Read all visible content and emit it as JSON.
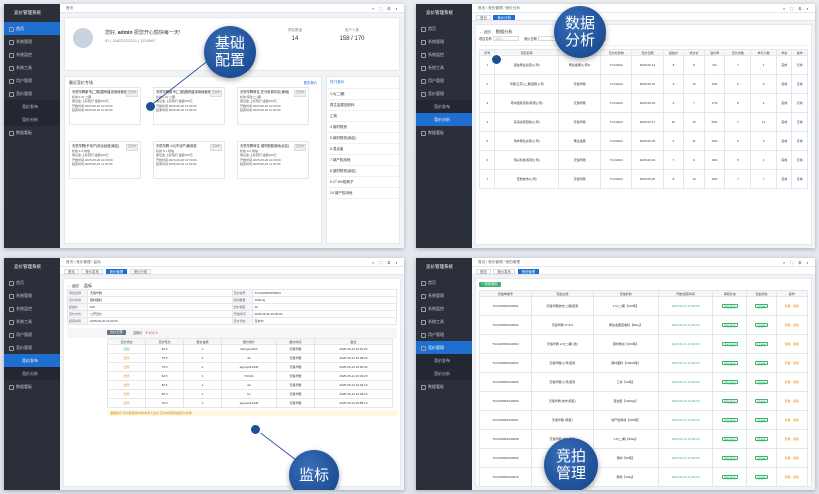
{
  "brand": "竞价管理系统",
  "sidebar": [
    "首页",
    "系统管理",
    "系统监控",
    "系统工具",
    "用户管理",
    "竞价管理",
    "竞价发布",
    "竞价分析",
    "数据看板"
  ],
  "sidebar_sub": [
    "竞价发布",
    "竞价分析"
  ],
  "panel1": {
    "breadcrumb": "首页",
    "greeting_pre": "您好,",
    "username": "admin",
    "greeting_post": "祝您开心愉快每一天!",
    "phone": "ID | 15822222224 | 1234567",
    "stats": [
      {
        "label": "项目数量",
        "value": "14"
      },
      {
        "label": "用户人数",
        "value": "158 / 170"
      }
    ],
    "section_title": "最近竞价专场",
    "more": "更多竞价",
    "cards": [
      {
        "title": "天恒华腾新市(二期)国有建设用地使用权",
        "badge": "竞价中",
        "l1": "标的:1-5(二)期",
        "l2": "保证金:上标院行 金额200元",
        "l3": "开始时间:2025-08-20 10:00:00",
        "l4": "结束时间:2025-08-20 11:00:00"
      },
      {
        "title": "天恒华腾新市(二期)国有建设用地使用权",
        "badge": "竞价中",
        "l1": "标的:1-6(二)期",
        "l2": "保证金:上标院行 金额200元",
        "l3": "开始时间:2025-08-20 10:00:00",
        "l4": "结束时间:2025-08-20 11:00:00"
      },
      {
        "title": "天恒华腾商住 在分析城中区(南地)",
        "badge": "竞价中",
        "l1": "标的:南住(二)期",
        "l2": "保证金:上标院行 金额200元",
        "l3": "开始时间:2025-08-20 10:00:00",
        "l4": "结束时间:2025-08-20 11:00:00"
      },
      {
        "title": "天恒华腾(不动产)综合经营(南区)",
        "badge": "竞价中",
        "l1": "标的:1-5 地块",
        "l2": "保证金:上标院行 金额200元",
        "l3": "开始时间:2025-08-20 10:00:00",
        "l4": "结束时间:2025-08-20 11:00:00"
      },
      {
        "title": "天恒华腾 1/2(不动产)使用权",
        "badge": "竞价中",
        "l1": "标的:5-1 地块",
        "l2": "保证金:上标院行 金额200元",
        "l3": "开始时间:2025-08-20 10:00:00",
        "l4": "结束时间:2025-08-20 11:00:00"
      },
      {
        "title": "天恒华腾商住 城市配套用地(北区)",
        "badge": "竞价中",
        "l1": "标的:3-2 地块",
        "l2": "保证金:上标院行 金额200元",
        "l3": "开始时间:2025-08-20 10:00:00",
        "l4": "结束时间:2025-08-20 11:00:00"
      }
    ],
    "rank_title": "热门竞价",
    "rank": [
      "1-5(二)期",
      "再生金属回收料",
      "乙商",
      "4 钢材物资",
      "5 钢材物资(南区)",
      "6 混合废",
      "7 城产权用地",
      "8 钢材物资(南区)",
      "9 27.5%阳离子",
      "10 城产权用地"
    ],
    "callout": [
      "基础",
      "配置"
    ]
  },
  "panel2": {
    "breadcrumb": "首页 / 竞价管理 / 竞价分析",
    "tabs": [
      "首页",
      "竞价分析"
    ],
    "back": "← 返回",
    "title": "数据分析",
    "filters": [
      "项目名称",
      "请输入",
      "竞价日期"
    ],
    "search": "搜索",
    "reset": "重置",
    "export": "导出",
    "headers": [
      "序号",
      "项目名称",
      "竞价单位",
      "竞价标的物",
      "竞价日期",
      "起拍价",
      "成交价",
      "溢价率",
      "竞价次数",
      "参与人数",
      "状态",
      "操作"
    ],
    "rows": [
      [
        "1",
        "康益再生资源(公司)",
        "再生金属(公司2)",
        "TCC2024",
        "2025-06-14",
        "8",
        "8",
        "0%",
        "7",
        "1",
        "完成",
        "查看"
      ],
      [
        "2",
        "华能(江苏)(二期)国有公司",
        "天恒华腾",
        "TCC2024",
        "2025-06-15",
        "9",
        "12",
        "33%",
        "6",
        "9",
        "完成",
        "查看"
      ],
      [
        "3",
        "南中国际贸易(有限公司)",
        "天恒华腾",
        "TCC2024",
        "2025-06-16",
        "6",
        "7",
        "17%",
        "8",
        "4",
        "完成",
        "查看"
      ],
      [
        "4",
        "蓝海资源回收(公司)",
        "天恒华腾",
        "TCC2024",
        "2025-06-17",
        "10",
        "15",
        "50%",
        "7",
        "11",
        "完成",
        "查看"
      ],
      [
        "5",
        "瑞丰再生资源(公司)",
        "再生金属",
        "TCC2024",
        "2025-06-18",
        "9",
        "11",
        "22%",
        "6",
        "3",
        "完成",
        "查看"
      ],
      [
        "6",
        "瑞兴科技(有限公司)",
        "天恒华腾",
        "TCC2024",
        "2025-06-19",
        "7",
        "9",
        "29%",
        "5",
        "4",
        "完成",
        "查看"
      ],
      [
        "7",
        "宏鼎城市(公司)",
        "天恒华腾",
        "TCC2024",
        "2025-06-20",
        "8",
        "10",
        "25%",
        "7",
        "7",
        "完成",
        "查看"
      ]
    ],
    "callout": [
      "数据",
      "分析"
    ]
  },
  "panel3": {
    "breadcrumb": "首页 / 竞价管理 / 监标",
    "tabs": [
      "首页",
      "竞价发布",
      "竞价管理",
      "竞价分析"
    ],
    "back": "← 返回",
    "title": "监标",
    "info_labels": [
      "项目名称",
      "竞价编号",
      "竞价标的",
      "标的数量",
      "起拍价",
      "加价幅度",
      "竞价方式",
      "开始时间",
      "结束时间",
      "竞价状态"
    ],
    "info_values": [
      "天恒华腾",
      "TCC202505250004",
      "钢材废料",
      "1000 kg",
      "100",
      "10",
      "公开竞价",
      "2025-06-20 10:00:00",
      "2025-06-20 11:00:00",
      "竞价中"
    ],
    "current_price_label": "当前价",
    "current_price": "¥ 102.5",
    "round_btn": "出价记录",
    "headers": [
      "竞价状态",
      "竞价轮次",
      "报价金额",
      "报价用户",
      "报价时间",
      "备注"
    ],
    "rows": [
      [
        "领先",
        "92.5",
        "2",
        "ddmgxpd123",
        "天恒华腾",
        "2025-06-14 10:10:20"
      ],
      [
        "出局",
        "79.5",
        "2",
        "ab",
        "天恒华腾",
        "2025-06-14 10:08:20"
      ],
      [
        "出局",
        "75.0",
        "2",
        "agxyxpt12345",
        "天恒华腾",
        "2025-06-14 10:06:30"
      ],
      [
        "出局",
        "92.5",
        "1",
        "TCC01",
        "天恒华腾",
        "2025-06-14 10:04:20"
      ],
      [
        "出局",
        "82.5",
        "1",
        "ab",
        "天恒华腾",
        "2025-06-14 10:02:10"
      ],
      [
        "出局",
        "80.0",
        "1",
        "lin",
        "天恒华腾",
        "2025-06-14 10:00:10"
      ],
      [
        "出局",
        "76.0",
        "1",
        "agxyxpt12345",
        "天恒华腾",
        "2025-06-14 09:58:10"
      ]
    ],
    "notice": "温馨提示:竞价结束前30秒内有人出价,竞价时间自动延长3分钟",
    "callout": [
      "监标"
    ]
  },
  "panel4": {
    "breadcrumb": "首页 / 竞价管理 / 竞拍管理",
    "tabs": [
      "首页",
      "竞价发布",
      "竞拍管理"
    ],
    "add": "+ 新增竞拍",
    "headers": [
      "竞拍单编号",
      "竞拍主题",
      "竞拍标的",
      "开始/结束时间",
      "审核状态",
      "竞拍状态",
      "操作"
    ],
    "rows": [
      [
        "TCC202506140001",
        "天恒华腾新市(二期)国有",
        "1-5(二)期【100吨】",
        "2025-06-14 10:00:00",
        "审核通过",
        "已发布",
        "查看 · 编辑"
      ],
      [
        "TCC202506140002",
        "天恒华腾 27.5%",
        "再生金属回收料【50kg】",
        "2025-06-14 10:00:00",
        "审核通过",
        "已发布",
        "查看 · 编辑"
      ],
      [
        "TCC202506140003",
        "天恒华腾 1-5(二)期 (改)",
        "钢材物资【100吨】",
        "2025-06-14 10:00:00",
        "审核通过",
        "已发布",
        "查看 · 编辑"
      ],
      [
        "TCC202506140004",
        "天恒华腾(公司)国有",
        "钢材废料【10000吨】",
        "2025-06-14 10:00:00",
        "审核通过",
        "已发布",
        "查看 · 编辑"
      ],
      [
        "TCC202506140005",
        "天恒华腾(公司)国有",
        "乙商【10吨】",
        "2025-06-14 10:00:00",
        "审核通过",
        "已发布",
        "查看 · 编辑"
      ],
      [
        "TCC202506140006",
        "天恒华腾 城市(南区)",
        "混合废【1000kg】",
        "2025-06-14 10:00:00",
        "审核通过",
        "已发布",
        "查看 · 编辑"
      ],
      [
        "TCC202506140007",
        "天恒华腾 (南区)",
        "城产权用地【200吨】",
        "2025-06-14 10:00:00",
        "审核通过",
        "已发布",
        "查看 · 编辑"
      ],
      [
        "TCC202506140008",
        "天恒华腾 城市 配套",
        "1-5(二)期【80kg】",
        "2025-06-14 10:00:00",
        "审核通过",
        "已发布",
        "查看 · 编辑"
      ],
      [
        "TCC202506140009",
        "天恒华腾(不动产)",
        "钢材【50吨】",
        "2025-06-14 10:00:00",
        "审核通过",
        "已发布",
        "查看 · 编辑"
      ],
      [
        "TCC202506140010",
        "天恒华腾(南区)",
        "钢材【10kg】",
        "2025-06-14 10:00:00",
        "审核通过",
        "已发布",
        "查看 · 编辑"
      ]
    ],
    "callout": [
      "竞拍",
      "管理"
    ]
  }
}
